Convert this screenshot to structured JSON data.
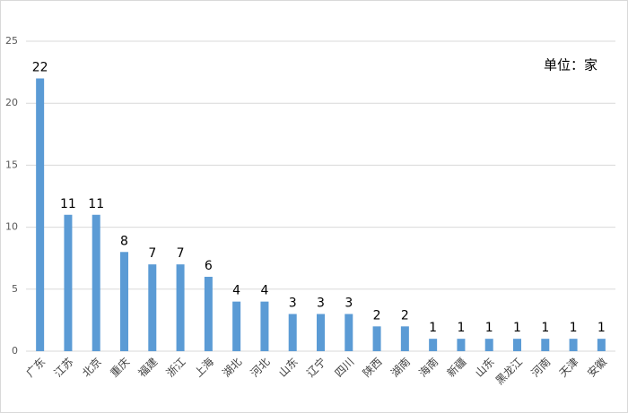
{
  "chart_data": {
    "type": "bar",
    "annotation": "单位：家",
    "categories": [
      "广东",
      "江苏",
      "北京",
      "重庆",
      "福建",
      "浙江",
      "上海",
      "湖北",
      "河北",
      "山东",
      "辽宁",
      "四川",
      "陕西",
      "湖南",
      "海南",
      "新疆",
      "山东",
      "黑龙江",
      "河南",
      "天津",
      "安徽"
    ],
    "values": [
      22,
      11,
      11,
      8,
      7,
      7,
      6,
      4,
      4,
      3,
      3,
      3,
      2,
      2,
      1,
      1,
      1,
      1,
      1,
      1,
      1
    ],
    "color": "#5b9bd5",
    "ylim": [
      0,
      25
    ],
    "yticks": [
      0,
      5,
      10,
      15,
      20,
      25
    ],
    "grid": true
  }
}
